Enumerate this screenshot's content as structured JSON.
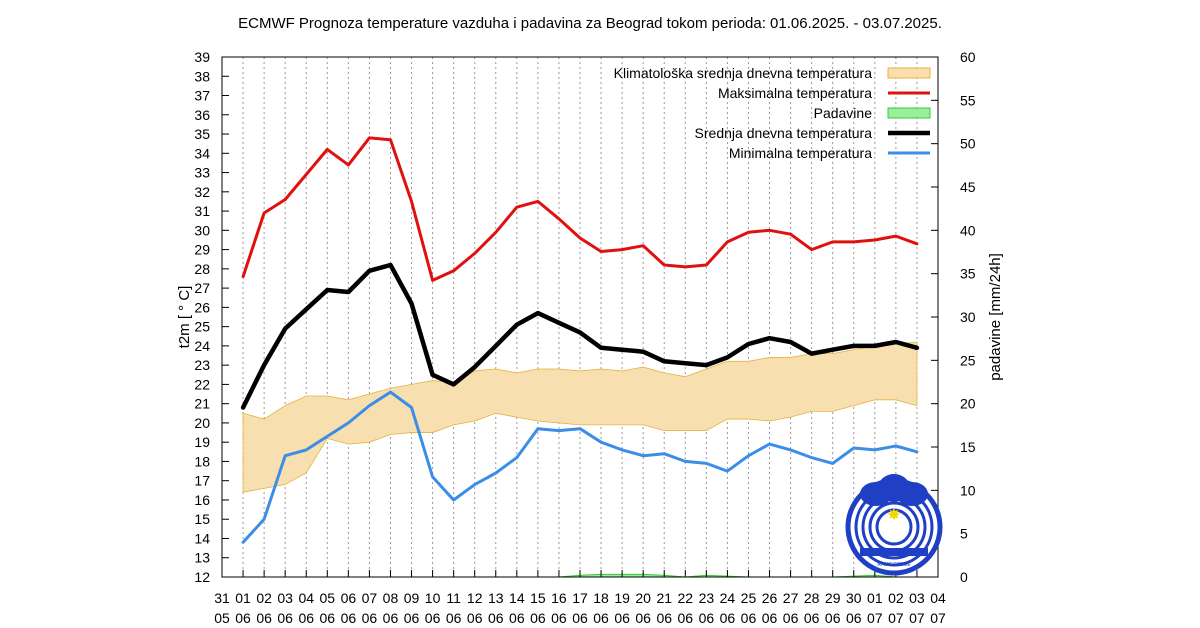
{
  "chart_data": {
    "type": "line",
    "title": "ECMWF Prognoza temperature vazduha i padavina za Beograd tokom perioda: 01.06.2025. - 03.07.2025.",
    "ylabel": "t2m [ ° C]",
    "y2label": "padavine [mm/24h]",
    "ylim": [
      12,
      39
    ],
    "y2lim": [
      0,
      60
    ],
    "grid": "vertical dashed",
    "legend_position": "top-right",
    "x_ticks": [
      {
        "day": "31",
        "month": "05"
      },
      {
        "day": "01",
        "month": "06"
      },
      {
        "day": "02",
        "month": "06"
      },
      {
        "day": "03",
        "month": "06"
      },
      {
        "day": "04",
        "month": "06"
      },
      {
        "day": "05",
        "month": "06"
      },
      {
        "day": "06",
        "month": "06"
      },
      {
        "day": "07",
        "month": "06"
      },
      {
        "day": "08",
        "month": "06"
      },
      {
        "day": "09",
        "month": "06"
      },
      {
        "day": "10",
        "month": "06"
      },
      {
        "day": "11",
        "month": "06"
      },
      {
        "day": "12",
        "month": "06"
      },
      {
        "day": "13",
        "month": "06"
      },
      {
        "day": "14",
        "month": "06"
      },
      {
        "day": "15",
        "month": "06"
      },
      {
        "day": "16",
        "month": "06"
      },
      {
        "day": "17",
        "month": "06"
      },
      {
        "day": "18",
        "month": "06"
      },
      {
        "day": "19",
        "month": "06"
      },
      {
        "day": "20",
        "month": "06"
      },
      {
        "day": "21",
        "month": "06"
      },
      {
        "day": "22",
        "month": "06"
      },
      {
        "day": "23",
        "month": "06"
      },
      {
        "day": "24",
        "month": "06"
      },
      {
        "day": "25",
        "month": "06"
      },
      {
        "day": "26",
        "month": "06"
      },
      {
        "day": "27",
        "month": "06"
      },
      {
        "day": "28",
        "month": "06"
      },
      {
        "day": "29",
        "month": "06"
      },
      {
        "day": "30",
        "month": "06"
      },
      {
        "day": "01",
        "month": "07"
      },
      {
        "day": "02",
        "month": "07"
      },
      {
        "day": "03",
        "month": "07"
      },
      {
        "day": "04",
        "month": "07"
      }
    ],
    "y_ticks": [
      12,
      13,
      14,
      15,
      16,
      17,
      18,
      19,
      20,
      21,
      22,
      23,
      24,
      25,
      26,
      27,
      28,
      29,
      30,
      31,
      32,
      33,
      34,
      35,
      36,
      37,
      38,
      39
    ],
    "y2_ticks": [
      0,
      5,
      10,
      15,
      20,
      25,
      30,
      35,
      40,
      45,
      50,
      55,
      60
    ],
    "series": [
      {
        "name": "Maksimalna temperatura",
        "color": "#e01010",
        "values": [
          27.6,
          30.9,
          31.6,
          32.9,
          34.2,
          33.4,
          34.8,
          34.7,
          31.5,
          27.4,
          27.9,
          28.8,
          29.9,
          31.2,
          31.5,
          30.6,
          29.6,
          28.9,
          29.0,
          29.2,
          28.2,
          28.1,
          28.2,
          29.4,
          29.9,
          30.0,
          29.8,
          29.0,
          29.4,
          29.4,
          29.5,
          29.7,
          29.3
        ]
      },
      {
        "name": "Srednja dnevna temperatura",
        "color": "#000000",
        "values": [
          20.8,
          23.0,
          24.9,
          25.9,
          26.9,
          26.8,
          27.9,
          28.2,
          26.2,
          22.5,
          22.0,
          22.9,
          24.0,
          25.1,
          25.7,
          25.2,
          24.7,
          23.9,
          23.8,
          23.7,
          23.2,
          23.1,
          23.0,
          23.4,
          24.1,
          24.4,
          24.2,
          23.6,
          23.8,
          24.0,
          24.0,
          24.2,
          23.9
        ]
      },
      {
        "name": "Minimalna temperatura",
        "color": "#3a8ee8",
        "values": [
          13.8,
          15.0,
          18.3,
          18.6,
          19.3,
          20.0,
          20.9,
          21.6,
          20.8,
          17.2,
          16.0,
          16.8,
          17.4,
          18.2,
          19.7,
          19.6,
          19.7,
          19.0,
          18.6,
          18.3,
          18.4,
          18.0,
          17.9,
          17.5,
          18.3,
          18.9,
          18.6,
          18.2,
          17.9,
          18.7,
          18.6,
          18.8,
          18.5
        ]
      },
      {
        "name": "Klimatološka srednja dnevna temperatura",
        "color": "#f7dfb0",
        "upper": [
          20.5,
          20.2,
          20.9,
          21.4,
          21.4,
          21.2,
          21.5,
          21.8,
          22.0,
          22.2,
          22.1,
          22.7,
          22.8,
          22.6,
          22.8,
          22.8,
          22.7,
          22.8,
          22.7,
          22.9,
          22.6,
          22.4,
          22.8,
          23.2,
          23.2,
          23.4,
          23.4,
          23.6,
          23.6,
          23.8,
          24.0,
          24.1,
          24.2
        ],
        "lower": [
          16.4,
          16.6,
          16.8,
          17.4,
          19.2,
          18.9,
          19.0,
          19.4,
          19.5,
          19.5,
          19.9,
          20.1,
          20.5,
          20.3,
          20.1,
          20.0,
          19.9,
          19.9,
          19.9,
          19.9,
          19.6,
          19.6,
          19.6,
          20.2,
          20.2,
          20.1,
          20.3,
          20.6,
          20.6,
          20.9,
          21.2,
          21.2,
          20.9
        ]
      },
      {
        "name": "Padavine",
        "color": "#9af09a",
        "values": [
          0,
          0,
          0,
          0,
          0,
          0,
          0,
          0,
          0,
          0,
          0,
          0,
          0,
          0,
          0,
          0,
          0.2,
          0.3,
          0.3,
          0.3,
          0.2,
          0,
          0.2,
          0.1,
          0,
          0,
          0,
          0,
          0,
          0.1,
          0.2,
          0,
          0
        ]
      }
    ],
    "legend_order": [
      "Klimatološka srednja dnevna temperatura",
      "Maksimalna temperatura",
      "Padavine",
      "Srednja dnevna temperatura",
      "Minimalna temperatura"
    ],
    "logo_text": "RHMZ SRBIJE"
  }
}
